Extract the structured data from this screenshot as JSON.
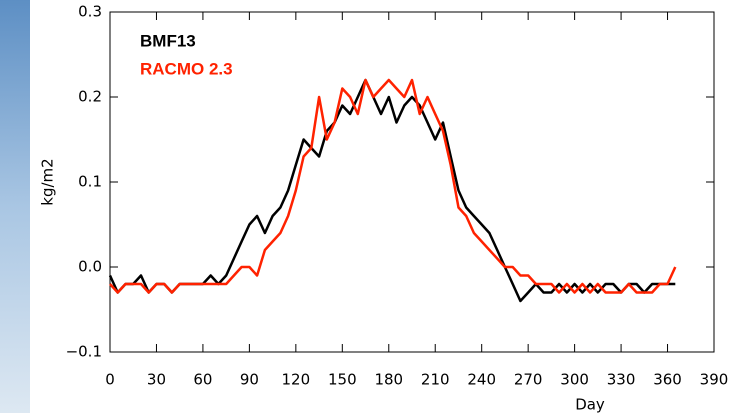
{
  "chart_data": {
    "type": "line",
    "x_label": "Day",
    "y_label": "kg/m2",
    "x": [
      0,
      5,
      10,
      15,
      20,
      25,
      30,
      35,
      40,
      45,
      50,
      55,
      60,
      65,
      70,
      75,
      80,
      85,
      90,
      95,
      100,
      105,
      110,
      115,
      120,
      125,
      130,
      135,
      140,
      145,
      150,
      155,
      160,
      165,
      170,
      175,
      180,
      185,
      190,
      195,
      200,
      205,
      210,
      215,
      220,
      225,
      230,
      235,
      240,
      245,
      250,
      255,
      260,
      265,
      270,
      275,
      280,
      285,
      290,
      295,
      300,
      305,
      310,
      315,
      320,
      325,
      330,
      335,
      340,
      345,
      350,
      355,
      360,
      365
    ],
    "series": [
      {
        "name": "BMF13",
        "color": "#000000",
        "values": [
          -0.01,
          -0.03,
          -0.02,
          -0.02,
          -0.01,
          -0.03,
          -0.02,
          -0.02,
          -0.03,
          -0.02,
          -0.02,
          -0.02,
          -0.02,
          -0.01,
          -0.02,
          -0.01,
          0.01,
          0.03,
          0.05,
          0.06,
          0.04,
          0.06,
          0.07,
          0.09,
          0.12,
          0.15,
          0.14,
          0.13,
          0.16,
          0.17,
          0.19,
          0.18,
          0.2,
          0.22,
          0.2,
          0.18,
          0.2,
          0.17,
          0.19,
          0.2,
          0.19,
          0.17,
          0.15,
          0.17,
          0.13,
          0.09,
          0.07,
          0.06,
          0.05,
          0.04,
          0.02,
          0.0,
          -0.02,
          -0.04,
          -0.03,
          -0.02,
          -0.03,
          -0.03,
          -0.02,
          -0.03,
          -0.02,
          -0.03,
          -0.02,
          -0.03,
          -0.02,
          -0.02,
          -0.03,
          -0.02,
          -0.02,
          -0.03,
          -0.02,
          -0.02,
          -0.02,
          -0.02
        ]
      },
      {
        "name": "RACMO 2.3",
        "color": "#ff2200",
        "values": [
          -0.02,
          -0.03,
          -0.02,
          -0.02,
          -0.02,
          -0.03,
          -0.02,
          -0.02,
          -0.03,
          -0.02,
          -0.02,
          -0.02,
          -0.02,
          -0.02,
          -0.02,
          -0.02,
          -0.01,
          0.0,
          0.0,
          -0.01,
          0.02,
          0.03,
          0.04,
          0.06,
          0.09,
          0.13,
          0.14,
          0.2,
          0.15,
          0.17,
          0.21,
          0.2,
          0.18,
          0.22,
          0.2,
          0.21,
          0.22,
          0.21,
          0.2,
          0.22,
          0.18,
          0.2,
          0.18,
          0.16,
          0.12,
          0.07,
          0.06,
          0.04,
          0.03,
          0.02,
          0.01,
          0.0,
          0.0,
          -0.01,
          -0.01,
          -0.02,
          -0.02,
          -0.02,
          -0.03,
          -0.02,
          -0.03,
          -0.02,
          -0.03,
          -0.02,
          -0.03,
          -0.03,
          -0.03,
          -0.02,
          -0.03,
          -0.03,
          -0.03,
          -0.02,
          -0.02,
          0.0
        ]
      }
    ],
    "xlim": [
      0,
      390
    ],
    "xticks": [
      0,
      30,
      60,
      90,
      120,
      150,
      180,
      210,
      240,
      270,
      300,
      330,
      360,
      390
    ],
    "ylim": [
      -0.1,
      0.3
    ],
    "yticks": [
      {
        "value": -0.1,
        "label": "−0.1"
      },
      {
        "value": 0,
        "label": "0.0"
      },
      0.1,
      0.2,
      0.3
    ],
    "legend": "upper left"
  }
}
